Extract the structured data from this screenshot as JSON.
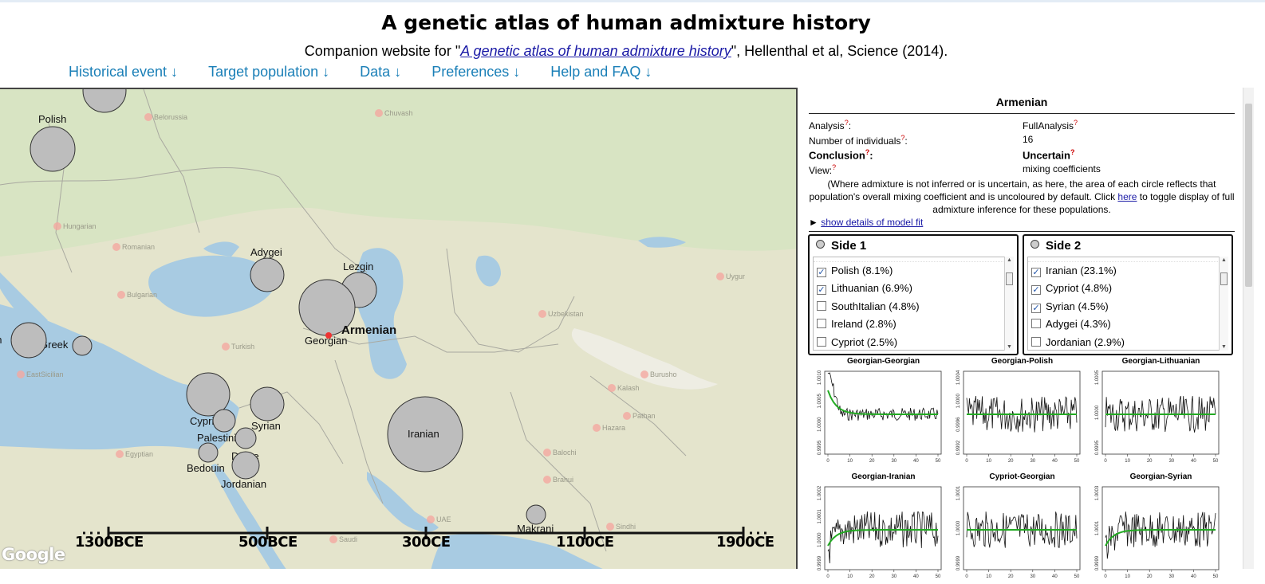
{
  "header": {
    "title": "A genetic atlas of human admixture history",
    "subtitle_prefix": "Companion website for \"",
    "subtitle_link": "A genetic atlas of human admixture history",
    "subtitle_suffix": "\", Hellenthal et al, Science (2014)."
  },
  "nav": [
    {
      "label": "Historical event ↓"
    },
    {
      "label": "Target population ↓"
    },
    {
      "label": "Data ↓"
    },
    {
      "label": "Preferences ↓"
    },
    {
      "label": "Help and FAQ ↓"
    }
  ],
  "map": {
    "target_label": "Armenian",
    "populations": [
      "Polish",
      "Adygei",
      "Lezgin",
      "Georgian",
      "Greek",
      "Cypriot",
      "Palestinian",
      "Syrian",
      "Druze",
      "Bedouin",
      "Jordanian",
      "Iranian",
      "Makrani",
      "an"
    ],
    "cities": [
      "Belorussia",
      "Chuvash",
      "Hungarian",
      "Romanian",
      "Bulgarian",
      "Turkish",
      "EastSicilian",
      "Egyptian",
      "Uzbekistan",
      "Uygur",
      "Kalash",
      "Burusho",
      "Pathan",
      "Hazara",
      "Balochi",
      "Brahui",
      "Sindhi",
      "Saudi",
      "UAE"
    ],
    "google_label": "Google",
    "timeline": [
      "1300BCE",
      "500BCE",
      "300CE",
      "1100CE",
      "1900CE"
    ]
  },
  "details": {
    "population": "Armenian",
    "rows": [
      {
        "key": "Analysis",
        "value": "FullAnalysis"
      },
      {
        "key": "Number of individuals",
        "value": "16"
      },
      {
        "key": "Conclusion",
        "value": "Uncertain"
      },
      {
        "key": "View:",
        "value": "mixing coefficients"
      }
    ],
    "question_mark": "?",
    "note_main": "(Where admixture is not inferred or is uncertain, as here, the area of each circle reflects that population's overall mixing coefficient and is uncoloured by default. Click ",
    "note_link": "here",
    "note_end": " to toggle display of full admixture inference for these populations.",
    "model_fit_arrow": "►",
    "model_fit_link": "show details of model fit"
  },
  "side1": {
    "title": "Side 1",
    "items": [
      {
        "label": "Polish (8.1%)",
        "checked": true
      },
      {
        "label": "Lithuanian (6.9%)",
        "checked": true
      },
      {
        "label": "SouthItalian (4.8%)",
        "checked": false
      },
      {
        "label": "Ireland (2.8%)",
        "checked": false
      },
      {
        "label": "Cypriot (2.5%)",
        "checked": false
      }
    ]
  },
  "side2": {
    "title": "Side 2",
    "items": [
      {
        "label": "Iranian (23.1%)",
        "checked": true
      },
      {
        "label": "Cypriot (4.8%)",
        "checked": true
      },
      {
        "label": "Syrian (4.5%)",
        "checked": true
      },
      {
        "label": "Adygei (4.3%)",
        "checked": false
      },
      {
        "label": "Jordanian (2.9%)",
        "checked": false
      }
    ]
  },
  "plots": [
    {
      "title": "Georgian-Georgian",
      "yticks": [
        "0.9995",
        "1.0000",
        "1.0005",
        "1.0010"
      ]
    },
    {
      "title": "Georgian-Polish",
      "yticks": [
        "0.9992",
        "0.9996",
        "1.0000",
        "1.0004"
      ]
    },
    {
      "title": "Georgian-Lithuanian",
      "yticks": [
        "0.9995",
        "1.0000",
        "1.0005"
      ]
    },
    {
      "title": "Georgian-Iranian",
      "yticks": [
        "0.9999",
        "1.0000",
        "1.0001",
        "1.0002"
      ]
    },
    {
      "title": "Cypriot-Georgian",
      "yticks": [
        "0.9999",
        "1.0000",
        "1.0001"
      ]
    },
    {
      "title": "Georgian-Syrian",
      "yticks": [
        "0.9999",
        "1.0001",
        "1.0003"
      ]
    }
  ],
  "plot_xticks": [
    "0",
    "10",
    "20",
    "30",
    "40",
    "50"
  ],
  "colors": {
    "nav": "#1a7fb7",
    "circle": "#bdbdbd",
    "fit_line": "#22aa22",
    "water": "#a8cbe2",
    "land": "#e6e4cf"
  }
}
